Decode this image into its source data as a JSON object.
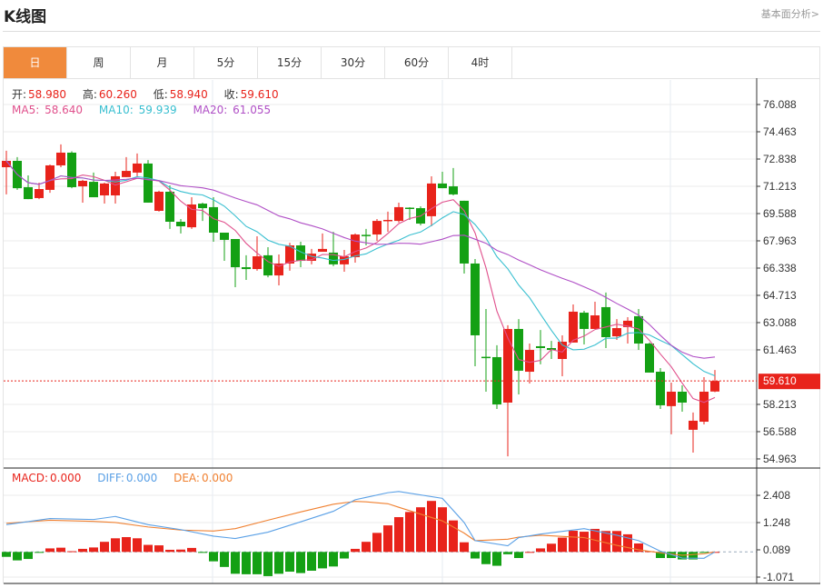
{
  "header": {
    "title": "K线图",
    "link": "基本面分析>"
  },
  "tabs": [
    {
      "label": "日",
      "active": true
    },
    {
      "label": "周"
    },
    {
      "label": "月"
    },
    {
      "label": "5分"
    },
    {
      "label": "15分"
    },
    {
      "label": "30分"
    },
    {
      "label": "60分"
    },
    {
      "label": "4时"
    }
  ],
  "ohlc": {
    "open_label": "开:",
    "open": "58.980",
    "high_label": "高:",
    "high": "60.260",
    "low_label": "低:",
    "low": "58.940",
    "close_label": "收:",
    "close": "59.610"
  },
  "ma": {
    "ma5_label": "MA5:",
    "ma5": "58.640",
    "ma10_label": "MA10:",
    "ma10": "59.939",
    "ma20_label": "MA20:",
    "ma20": "61.055"
  },
  "macd_info": {
    "macd_label": "MACD:",
    "macd": "0.000",
    "diff_label": "DIFF:",
    "diff": "0.000",
    "dea_label": "DEA:",
    "dea": "0.000"
  },
  "colors": {
    "up": "#e8231b",
    "down": "#14a014",
    "ma5": "#e0508c",
    "ma10": "#38bfd0",
    "ma20": "#b04fc6",
    "diff": "#5aa0e6",
    "dea": "#f08030",
    "active_tab": "#f08a3c"
  },
  "chart_data": [
    {
      "type": "candlestick",
      "title": "",
      "y_ticks": [
        "76.088",
        "74.463",
        "72.838",
        "71.213",
        "69.588",
        "67.963",
        "66.338",
        "64.713",
        "63.088",
        "61.463",
        "58.213",
        "56.588",
        "54.963"
      ],
      "ylim": [
        54.963,
        76.088
      ],
      "last_price": "59.610",
      "grid": true,
      "candles": [
        [
          72.35,
          73.33,
          70.73,
          72.73
        ],
        [
          72.73,
          72.95,
          71.0,
          71.1
        ],
        [
          71.16,
          71.86,
          70.45,
          70.45
        ],
        [
          70.51,
          71.43,
          70.45,
          71.05
        ],
        [
          71.0,
          72.51,
          70.83,
          72.46
        ],
        [
          72.46,
          73.71,
          72.35,
          73.22
        ],
        [
          73.22,
          73.3,
          71.1,
          71.16
        ],
        [
          71.21,
          71.6,
          70.24,
          71.54
        ],
        [
          71.48,
          72.03,
          70.56,
          70.56
        ],
        [
          70.67,
          71.43,
          70.18,
          71.38
        ],
        [
          70.67,
          72.08,
          70.18,
          71.81
        ],
        [
          71.76,
          72.95,
          71.76,
          72.13
        ],
        [
          72.03,
          73.17,
          71.81,
          72.57
        ],
        [
          72.57,
          72.78,
          70.24,
          70.24
        ],
        [
          69.75,
          70.95,
          69.7,
          70.89
        ],
        [
          70.89,
          71.27,
          68.67,
          69.1
        ],
        [
          69.1,
          69.26,
          68.4,
          68.83
        ],
        [
          68.77,
          70.56,
          68.67,
          70.13
        ],
        [
          70.18,
          70.24,
          69.15,
          69.91
        ],
        [
          69.97,
          70.56,
          67.91,
          68.45
        ],
        [
          68.45,
          68.45,
          66.77,
          68.02
        ],
        [
          68.07,
          68.07,
          65.2,
          66.39
        ],
        [
          66.39,
          67.1,
          65.63,
          66.28
        ],
        [
          66.28,
          68.23,
          66.18,
          67.04
        ],
        [
          67.1,
          67.58,
          65.79,
          65.9
        ],
        [
          65.9,
          67.15,
          65.31,
          66.61
        ],
        [
          66.61,
          67.85,
          66.18,
          67.69
        ],
        [
          67.69,
          67.91,
          66.39,
          66.77
        ],
        [
          66.77,
          67.48,
          66.56,
          67.2
        ],
        [
          67.31,
          68.4,
          67.31,
          67.48
        ],
        [
          67.26,
          68.5,
          66.45,
          66.56
        ],
        [
          66.56,
          67.42,
          66.12,
          67.04
        ],
        [
          66.99,
          68.4,
          66.66,
          68.34
        ],
        [
          68.32,
          68.67,
          67.69,
          68.26
        ],
        [
          68.34,
          69.26,
          67.96,
          69.15
        ],
        [
          69.15,
          69.7,
          68.5,
          69.21
        ],
        [
          69.15,
          70.24,
          69.05,
          69.97
        ],
        [
          69.94,
          69.97,
          69.21,
          69.88
        ],
        [
          69.91,
          70.02,
          68.88,
          68.99
        ],
        [
          69.43,
          71.81,
          68.83,
          71.38
        ],
        [
          71.38,
          72.08,
          71.1,
          71.1
        ],
        [
          71.21,
          72.3,
          70.67,
          70.73
        ],
        [
          70.35,
          70.35,
          66.01,
          66.61
        ],
        [
          66.61,
          66.88,
          60.49,
          62.33
        ],
        [
          61.05,
          63.9,
          58.97,
          61.0
        ],
        [
          61.03,
          61.74,
          57.94,
          58.21
        ],
        [
          58.32,
          62.93,
          55.12,
          62.71
        ],
        [
          62.71,
          63.3,
          58.81,
          60.22
        ],
        [
          60.16,
          61.84,
          59.46,
          61.46
        ],
        [
          61.68,
          62.65,
          60.6,
          61.57
        ],
        [
          61.57,
          62.0,
          60.92,
          61.46
        ],
        [
          60.92,
          62.33,
          59.89,
          61.95
        ],
        [
          61.9,
          64.17,
          61.9,
          63.74
        ],
        [
          63.68,
          63.79,
          61.79,
          62.71
        ],
        [
          62.71,
          64.33,
          62.71,
          63.52
        ],
        [
          64.01,
          64.88,
          61.57,
          62.22
        ],
        [
          62.27,
          63.3,
          62.06,
          62.76
        ],
        [
          62.82,
          63.41,
          61.84,
          63.2
        ],
        [
          63.47,
          63.9,
          61.46,
          61.84
        ],
        [
          61.84,
          61.9,
          60.11,
          60.11
        ],
        [
          60.16,
          60.38,
          57.94,
          58.16
        ],
        [
          58.11,
          59.51,
          56.43,
          58.97
        ],
        [
          58.97,
          59.35,
          57.78,
          58.32
        ],
        [
          56.7,
          57.73,
          55.34,
          57.24
        ],
        [
          57.18,
          59.84,
          57.02,
          58.97
        ],
        [
          58.98,
          60.26,
          58.94,
          59.61
        ]
      ],
      "candle_fields": [
        "open",
        "high",
        "low",
        "close"
      ],
      "series": [
        "MA5",
        "MA10",
        "MA20"
      ]
    },
    {
      "type": "bar+line",
      "title": "",
      "y_ticks": [
        "2.408",
        "1.248",
        "0.089",
        "-1.071"
      ],
      "ylim": [
        -1.071,
        2.408
      ],
      "macd_hist": [
        -0.21,
        -0.36,
        -0.3,
        -0.04,
        0.15,
        0.18,
        0.03,
        0.13,
        0.19,
        0.43,
        0.58,
        0.63,
        0.58,
        0.3,
        0.28,
        0.09,
        0.1,
        0.17,
        -0.04,
        -0.4,
        -0.64,
        -0.93,
        -0.95,
        -0.95,
        -1.03,
        -0.93,
        -0.84,
        -0.9,
        -0.8,
        -0.7,
        -0.62,
        -0.28,
        0.13,
        0.43,
        0.81,
        1.13,
        1.48,
        1.7,
        1.9,
        2.17,
        1.9,
        1.34,
        0.41,
        -0.28,
        -0.52,
        -0.59,
        -0.1,
        -0.26,
        0,
        0.15,
        0.35,
        0.61,
        0.9,
        0.86,
        0.98,
        0.89,
        0.89,
        0.75,
        0.36,
        0.03,
        -0.26,
        -0.26,
        -0.32,
        -0.32,
        -0.04,
        0
      ],
      "diff": [
        [
          1,
          1.16
        ],
        [
          5,
          1.42
        ],
        [
          9,
          1.38
        ],
        [
          11,
          1.51
        ],
        [
          14,
          1.16
        ],
        [
          17,
          0.95
        ],
        [
          20,
          0.67
        ],
        [
          22,
          0.57
        ],
        [
          25,
          0.84
        ],
        [
          28,
          1.28
        ],
        [
          31,
          1.73
        ],
        [
          33,
          2.22
        ],
        [
          34,
          2.32
        ],
        [
          36,
          2.52
        ],
        [
          37,
          2.57
        ],
        [
          41,
          2.28
        ],
        [
          43,
          1.25
        ],
        [
          44,
          0.48
        ],
        [
          47,
          0.26
        ],
        [
          48,
          0.61
        ],
        [
          50,
          0.76
        ],
        [
          54,
          0.99
        ],
        [
          57,
          0.71
        ],
        [
          59,
          0.48
        ],
        [
          61,
          0.03
        ],
        [
          63,
          -0.26
        ],
        [
          65,
          -0.27
        ],
        [
          66,
          0
        ]
      ],
      "dea": [
        [
          1,
          1.22
        ],
        [
          5,
          1.35
        ],
        [
          9,
          1.3
        ],
        [
          11,
          1.25
        ],
        [
          14,
          1.06
        ],
        [
          17,
          0.93
        ],
        [
          20,
          0.89
        ],
        [
          22,
          0.99
        ],
        [
          25,
          1.35
        ],
        [
          28,
          1.7
        ],
        [
          31,
          2.03
        ],
        [
          33,
          2.15
        ],
        [
          34,
          2.13
        ],
        [
          36,
          2.05
        ],
        [
          37,
          1.9
        ],
        [
          41,
          1.32
        ],
        [
          43,
          0.8
        ],
        [
          44,
          0.48
        ],
        [
          47,
          0.54
        ],
        [
          48,
          0.63
        ],
        [
          50,
          0.71
        ],
        [
          54,
          0.61
        ],
        [
          57,
          0.28
        ],
        [
          59,
          0.09
        ],
        [
          61,
          -0.04
        ],
        [
          63,
          -0.14
        ],
        [
          65,
          -0.08
        ],
        [
          66,
          0
        ]
      ]
    }
  ]
}
